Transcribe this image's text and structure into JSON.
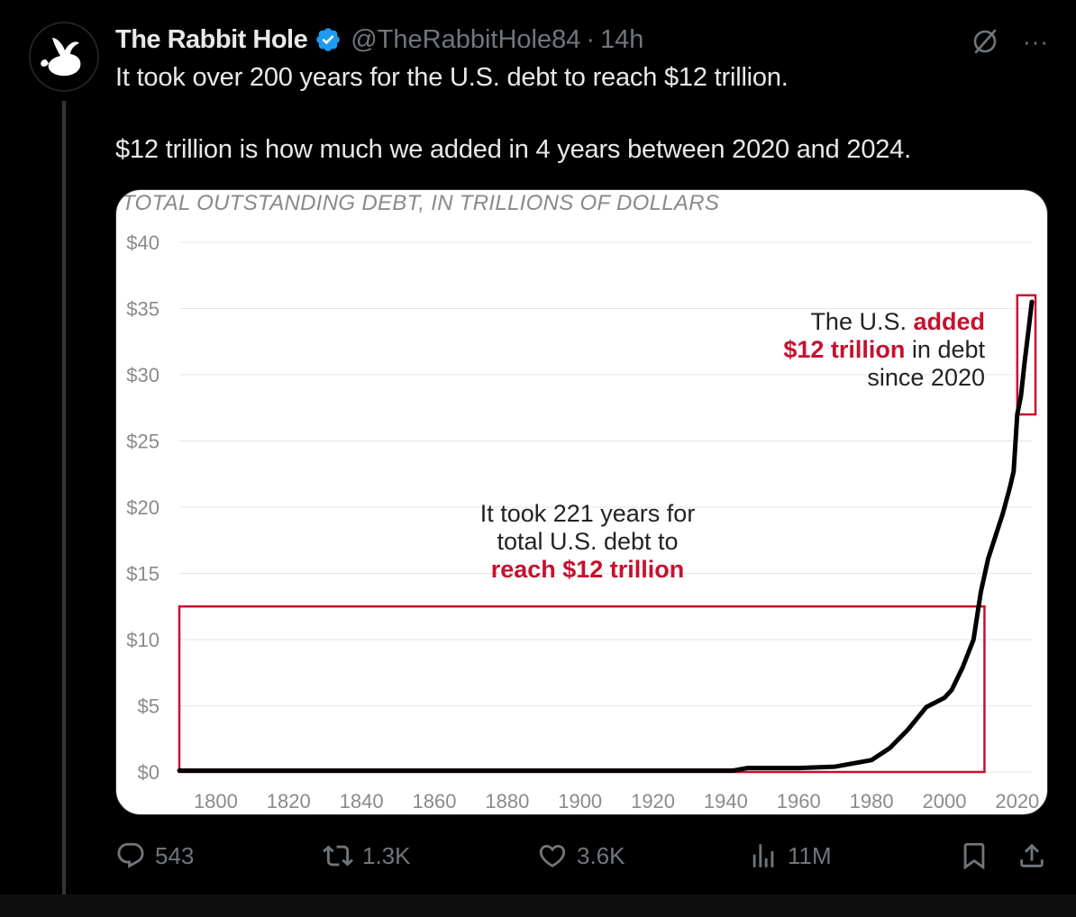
{
  "tweet": {
    "author": {
      "display_name": "The Rabbit Hole",
      "handle": "@TheRabbitHole84",
      "verified": true,
      "avatar_icon": "rabbit-logo-icon"
    },
    "separator": "·",
    "time": "14h",
    "text_lines": [
      "It took over 200 years for the U.S. debt to reach $12 trillion.",
      "$12 trillion is how much we added in 4 years between 2020 and 2024."
    ],
    "top_icons": [
      "grok-icon",
      "more-icon"
    ],
    "more_label": "···"
  },
  "actions": {
    "replies": "543",
    "reposts": "1.3K",
    "likes": "3.6K",
    "views": "11M",
    "icons": [
      "reply-icon",
      "repost-icon",
      "like-icon",
      "views-icon",
      "bookmark-icon",
      "share-icon"
    ]
  },
  "colors": {
    "background": "#000000",
    "text": "#e7e9ea",
    "muted": "#71767b",
    "verified": "#1d9bf0",
    "chart_red": "#c8102e",
    "chart_line": "#000000"
  },
  "chart_data": {
    "type": "line",
    "title": "TOTAL OUTSTANDING DEBT, IN TRILLIONS OF DOLLARS",
    "xlabel": "",
    "ylabel": "",
    "x_ticks": [
      "1800",
      "1820",
      "1840",
      "1860",
      "1880",
      "1900",
      "1920",
      "1940",
      "1960",
      "1980",
      "2000",
      "2020"
    ],
    "y_ticks": [
      "$0",
      "$5",
      "$10",
      "$15",
      "$20",
      "$25",
      "$30",
      "$35",
      "$40"
    ],
    "xlim": [
      1790,
      2024
    ],
    "ylim": [
      0,
      40
    ],
    "grid": true,
    "series": [
      {
        "x": [
          1790,
          1800,
          1820,
          1840,
          1860,
          1880,
          1900,
          1915,
          1919,
          1930,
          1940,
          1942,
          1946,
          1960,
          1970,
          1980,
          1985,
          1990,
          1995,
          2000,
          2002,
          2005,
          2008,
          2010,
          2012,
          2014,
          2016,
          2018,
          2019,
          2020,
          2021,
          2022,
          2023,
          2024
        ],
        "y": [
          0.1,
          0.1,
          0.1,
          0.1,
          0.1,
          0.1,
          0.1,
          0.1,
          0.1,
          0.1,
          0.1,
          0.1,
          0.3,
          0.3,
          0.4,
          0.9,
          1.8,
          3.2,
          4.9,
          5.6,
          6.2,
          7.9,
          10.0,
          13.6,
          16.1,
          17.8,
          19.5,
          21.5,
          22.7,
          27.0,
          28.4,
          30.9,
          33.2,
          35.5
        ]
      }
    ],
    "annotations": [
      {
        "label": "It took 221 years for total U.S. debt to reach $12 trillion",
        "lines": [
          [
            {
              "text": "It took 221 years for",
              "color": "#222222"
            }
          ],
          [
            {
              "text": "total U.S. debt to",
              "color": "#222222"
            }
          ],
          [
            {
              "text": "reach $12 trillion",
              "color": "#c8102e",
              "bold": true
            }
          ]
        ],
        "box_x": [
          1790,
          2011
        ],
        "box_y": [
          0,
          12.5
        ]
      },
      {
        "label": "The U.S. added $12 trillion in debt since 2020",
        "lines": [
          [
            {
              "text": "The U.S. ",
              "color": "#222222"
            },
            {
              "text": "added",
              "color": "#c8102e",
              "bold": true
            }
          ],
          [
            {
              "text": "$12 trillion",
              "color": "#c8102e",
              "bold": true
            },
            {
              "text": " in debt",
              "color": "#222222"
            }
          ],
          [
            {
              "text": "since 2020",
              "color": "#222222"
            }
          ]
        ],
        "box_x": [
          2020,
          2025
        ],
        "box_y": [
          27,
          36
        ]
      }
    ]
  }
}
